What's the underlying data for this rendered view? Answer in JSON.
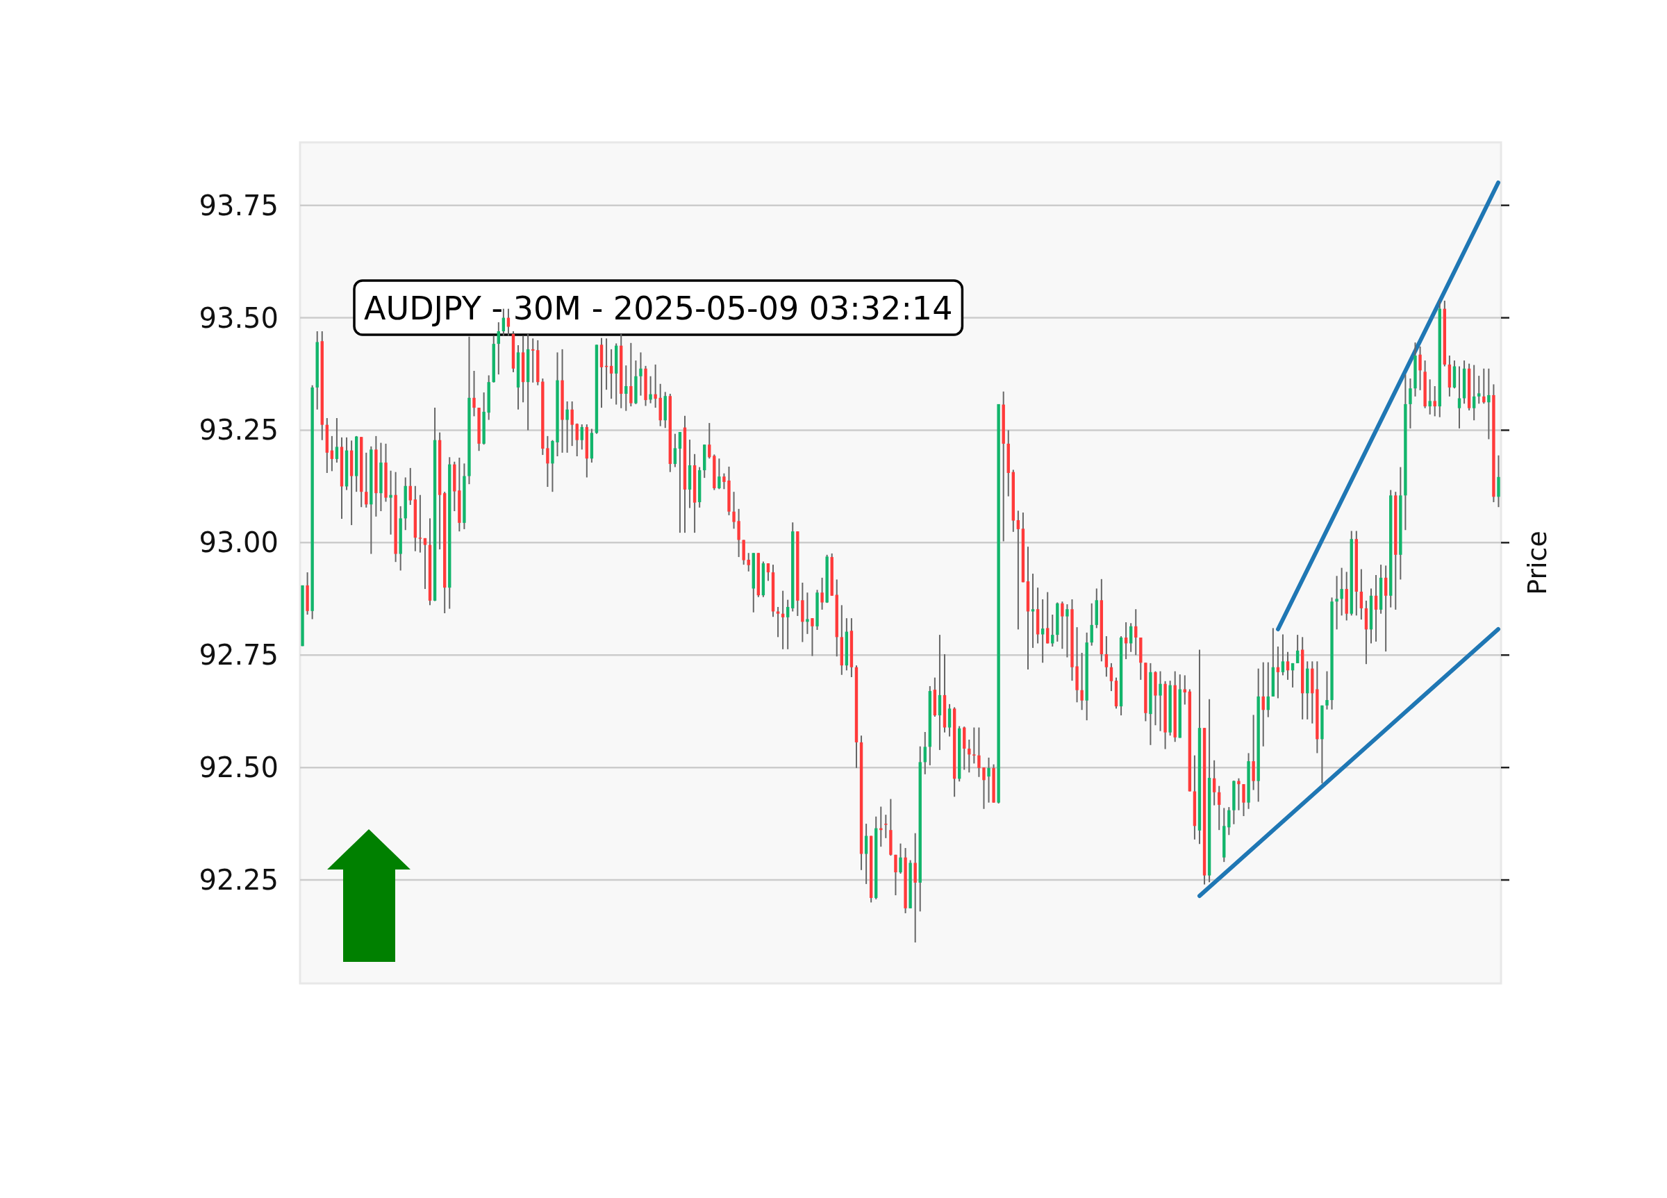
{
  "chart_data": {
    "type": "candlestick",
    "title": "AUDJPY - 30M - 2025-05-09 03:32:14",
    "ylabel": "Price",
    "colors": [
      "#12b56b",
      "#ff3a3a",
      "#12b56b",
      "#12b56b",
      "#ff3a3a",
      "#ff3a3a",
      "#ff3a3a",
      "#12b56b",
      "#ff3a3a",
      "#12b56b",
      "#ff3a3a",
      "#12b56b",
      "#ff3a3a",
      "#ff3a3a",
      "#12b56b",
      "#ff3a3a",
      "#12b56b",
      "#ff3a3a",
      "#12b56b",
      "#ff3a3a",
      "#12b56b",
      "#12b56b",
      "#ff3a3a",
      "#ff3a3a",
      "#ff3a3a",
      "#ff3a3a",
      "#ff3a3a",
      "#12b56b",
      "#ff3a3a",
      "#ff3a3a",
      "#12b56b",
      "#ff3a3a",
      "#ff3a3a",
      "#12b56b",
      "#12b56b",
      "#ff3a3a",
      "#ff3a3a",
      "#12b56b",
      "#12b56b",
      "#12b56b",
      "#12b56b",
      "#12b56b",
      "#ff3a3a",
      "#ff3a3a",
      "#12b56b",
      "#ff3a3a",
      "#12b56b",
      "#ff3a3a",
      "#ff3a3a",
      "#ff3a3a",
      "#ff3a3a",
      "#12b56b",
      "#12b56b",
      "#ff3a3a",
      "#12b56b",
      "#ff3a3a",
      "#ff3a3a",
      "#12b56b",
      "#ff3a3a",
      "#12b56b",
      "#12b56b",
      "#ff3a3a",
      "#ff3a3a",
      "#ff3a3a",
      "#12b56b",
      "#ff3a3a",
      "#12b56b",
      "#ff3a3a",
      "#12b56b",
      "#12b56b",
      "#ff3a3a",
      "#12b56b",
      "#ff3a3a",
      "#ff3a3a",
      "#12b56b",
      "#ff3a3a",
      "#12b56b",
      "#12b56b",
      "#ff3a3a",
      "#12b56b",
      "#ff3a3a",
      "#12b56b",
      "#12b56b",
      "#ff3a3a",
      "#ff3a3a",
      "#12b56b",
      "#ff3a3a",
      "#ff3a3a",
      "#ff3a3a",
      "#ff3a3a",
      "#ff3a3a",
      "#ff3a3a",
      "#12b56b",
      "#ff3a3a",
      "#12b56b",
      "#ff3a3a",
      "#ff3a3a",
      "#ff3a3a",
      "#ff3a3a",
      "#12b56b",
      "#12b56b",
      "#ff3a3a",
      "#ff3a3a",
      "#12b56b",
      "#ff3a3a",
      "#12b56b",
      "#ff3a3a",
      "#12b56b",
      "#ff3a3a",
      "#ff3a3a",
      "#ff3a3a",
      "#12b56b",
      "#ff3a3a",
      "#ff3a3a",
      "#ff3a3a",
      "#12b56b",
      "#ff3a3a",
      "#12b56b",
      "#ff3a3a",
      "#ff3a3a",
      "#ff3a3a",
      "#ff3a3a",
      "#12b56b",
      "#ff3a3a",
      "#12b56b",
      "#ff3a3a",
      "#12b56b",
      "#12b56b",
      "#12b56b",
      "#ff3a3a",
      "#12b56b",
      "#ff3a3a",
      "#12b56b",
      "#ff3a3a",
      "#12b56b",
      "#ff3a3a",
      "#ff3a3a",
      "#ff3a3a",
      "#ff3a3a",
      "#ff3a3a",
      "#12b56b",
      "#ff3a3a",
      "#12b56b",
      "#ff3a3a",
      "#ff3a3a",
      "#ff3a3a",
      "#ff3a3a",
      "#ff3a3a",
      "#ff3a3a",
      "#12b56b",
      "#ff3a3a",
      "#12b56b",
      "#ff3a3a",
      "#12b56b",
      "#12b56b",
      "#ff3a3a",
      "#12b56b",
      "#ff3a3a",
      "#ff3a3a",
      "#ff3a3a",
      "#12b56b",
      "#12b56b",
      "#12b56b",
      "#ff3a3a",
      "#ff3a3a",
      "#ff3a3a",
      "#ff3a3a",
      "#12b56b",
      "#ff3a3a",
      "#12b56b",
      "#ff3a3a",
      "#ff3a3a",
      "#ff3a3a",
      "#12b56b",
      "#ff3a3a",
      "#12b56b",
      "#ff3a3a",
      "#12b56b",
      "#ff3a3a",
      "#12b56b",
      "#ff3a3a",
      "#ff3a3a",
      "#ff3a3a",
      "#12b56b",
      "#ff3a3a",
      "#12b56b",
      "#ff3a3a",
      "#ff3a3a",
      "#12b56b",
      "#12b56b",
      "#12b56b",
      "#ff3a3a",
      "#ff3a3a",
      "#12b56b",
      "#ff3a3a",
      "#12b56b",
      "#ff3a3a",
      "#12b56b",
      "#12b56b",
      "#ff3a3a",
      "#12b56b",
      "#ff3a3a",
      "#12b56b",
      "#12b56b",
      "#ff3a3a",
      "#12b56b",
      "#ff3a3a",
      "#ff3a3a",
      "#12b56b",
      "#12b56b",
      "#12b56b",
      "#12b56b",
      "#12b56b",
      "#ff3a3a",
      "#12b56b",
      "#ff3a3a",
      "#ff3a3a",
      "#ff3a3a",
      "#12b56b",
      "#ff3a3a",
      "#12b56b",
      "#ff3a3a",
      "#12b56b",
      "#ff3a3a",
      "#12b56b",
      "#12b56b",
      "#12b56b",
      "#12b56b",
      "#ff3a3a",
      "#ff3a3a",
      "#12b56b",
      "#ff3a3a",
      "#12b56b",
      "#ff3a3a",
      "#ff3a3a",
      "#12b56b",
      "#12b56b",
      "#12b56b",
      "#ff3a3a",
      "#12b56b",
      "#12b56b",
      "#ff3a3a",
      "#12b56b",
      "#ff3a3a",
      "#12b56b"
    ],
    "ylim": [
      92.02,
      93.89
    ],
    "yticks": [
      {
        "value": 92.25,
        "label": "92.25"
      },
      {
        "value": 92.5,
        "label": "92.50"
      },
      {
        "value": 92.75,
        "label": "92.75"
      },
      {
        "value": 93,
        "label": "93.00"
      },
      {
        "value": 93.25,
        "label": "93.25"
      },
      {
        "value": 93.5,
        "label": "93.50"
      },
      {
        "value": 93.75,
        "label": "93.75"
      }
    ],
    "grid": "y",
    "tick_labels": "y",
    "categories": [
      null,
      null,
      null,
      null,
      null,
      null,
      null,
      null,
      null,
      null,
      null,
      null,
      null,
      null,
      null,
      null,
      null,
      null,
      null,
      null,
      null,
      null,
      null,
      null,
      null,
      null,
      null,
      null,
      null,
      null,
      null,
      null,
      null,
      null,
      null,
      null,
      null,
      null,
      null,
      null,
      null,
      null,
      null,
      null,
      null,
      null,
      null,
      null,
      null,
      null,
      null,
      null,
      null,
      null,
      null,
      null,
      null,
      null,
      null,
      null,
      null,
      null,
      null,
      null,
      null,
      null,
      null,
      null,
      null,
      null,
      null,
      null,
      null,
      null,
      null,
      null,
      null,
      null,
      null,
      null,
      null,
      null,
      null,
      null,
      null,
      null,
      null,
      null,
      null,
      null,
      null,
      null,
      null,
      null,
      null,
      null,
      null,
      null,
      null,
      null,
      null,
      null,
      null,
      null,
      null,
      null,
      null,
      null,
      null,
      null,
      null,
      null,
      null,
      null,
      null,
      null,
      null,
      null,
      null,
      null,
      null,
      null,
      null,
      null,
      null,
      null,
      null,
      null,
      null,
      null,
      null,
      null,
      null,
      null,
      null,
      null,
      null,
      null,
      null,
      null,
      null,
      null,
      null,
      null,
      null,
      null,
      null,
      null,
      null,
      null,
      null,
      null,
      null,
      null,
      null,
      null,
      null,
      null,
      null,
      null,
      null,
      null,
      null,
      null,
      null,
      null,
      null,
      null,
      null,
      null,
      null,
      null,
      null,
      null,
      null,
      null,
      null,
      null,
      null,
      null,
      null,
      null,
      null,
      null,
      null,
      null,
      null,
      null,
      null,
      null,
      null,
      null,
      null,
      null,
      null,
      null,
      null,
      null,
      null,
      null,
      null,
      null,
      null,
      null,
      null,
      null,
      null,
      null,
      null,
      null,
      null,
      null,
      null,
      null,
      null,
      null,
      null,
      null,
      null,
      null,
      null,
      null,
      null,
      null,
      null,
      null,
      null,
      null,
      null,
      null,
      null,
      null,
      null,
      null,
      null,
      null,
      null,
      null,
      null,
      null,
      null,
      null,
      null,
      null,
      null
    ],
    "ohlc": [
      [
        92.77,
        92.905,
        92.77,
        92.905
      ],
      [
        92.905,
        92.934,
        92.84,
        92.848
      ],
      [
        92.848,
        93.35,
        92.83,
        93.345
      ],
      [
        93.345,
        93.47,
        93.296,
        93.446
      ],
      [
        93.448,
        93.47,
        93.228,
        93.262
      ],
      [
        93.262,
        93.277,
        93.155,
        93.2
      ],
      [
        93.205,
        93.237,
        93.159,
        93.186
      ],
      [
        93.186,
        93.277,
        93.178,
        93.213
      ],
      [
        93.213,
        93.234,
        93.053,
        93.125
      ],
      [
        93.125,
        93.234,
        93.117,
        93.205
      ],
      [
        93.205,
        93.227,
        93.039,
        93.148
      ],
      [
        93.148,
        93.237,
        93.113,
        93.236
      ],
      [
        93.235,
        93.235,
        93.079,
        93.113
      ],
      [
        93.113,
        93.2,
        93.078,
        93.085
      ],
      [
        93.085,
        93.214,
        92.975,
        93.207
      ],
      [
        93.207,
        93.237,
        93.058,
        93.11
      ],
      [
        93.11,
        93.222,
        93.07,
        93.178
      ],
      [
        93.178,
        93.22,
        93.091,
        93.1
      ],
      [
        93.1,
        93.16,
        93.018,
        93.106
      ],
      [
        93.106,
        93.157,
        92.957,
        92.975
      ],
      [
        92.975,
        93.081,
        92.938,
        93.054
      ],
      [
        93.054,
        93.145,
        93.028,
        93.126
      ],
      [
        93.126,
        93.166,
        93.084,
        93.094
      ],
      [
        93.096,
        93.126,
        92.981,
        93.011
      ],
      [
        93.011,
        93.106,
        92.978,
        93.009
      ],
      [
        93.01,
        93.01,
        92.897,
        92.995
      ],
      [
        92.995,
        93.054,
        92.861,
        92.871
      ],
      [
        92.871,
        93.3,
        92.87,
        93.228
      ],
      [
        93.228,
        93.245,
        92.985,
        93.106
      ],
      [
        93.11,
        93.113,
        92.843,
        92.9
      ],
      [
        92.9,
        93.19,
        92.853,
        93.174
      ],
      [
        93.174,
        93.18,
        93.07,
        93.114
      ],
      [
        93.116,
        93.189,
        93.025,
        93.044
      ],
      [
        93.044,
        93.176,
        93.03,
        93.148
      ],
      [
        93.148,
        93.458,
        93.13,
        93.322
      ],
      [
        93.322,
        93.382,
        93.281,
        93.3
      ],
      [
        93.3,
        93.3,
        93.204,
        93.22
      ],
      [
        93.22,
        93.334,
        93.218,
        93.291
      ],
      [
        93.289,
        93.372,
        93.273,
        93.357
      ],
      [
        93.357,
        93.46,
        93.356,
        93.442
      ],
      [
        93.442,
        93.49,
        93.374,
        93.47
      ],
      [
        93.47,
        93.52,
        93.46,
        93.5
      ],
      [
        93.5,
        93.52,
        93.46,
        93.48
      ],
      [
        93.464,
        93.47,
        93.379,
        93.387
      ],
      [
        93.345,
        93.439,
        93.296,
        93.423
      ],
      [
        93.423,
        93.46,
        93.312,
        93.357
      ],
      [
        93.357,
        93.464,
        93.25,
        93.43
      ],
      [
        93.43,
        93.454,
        93.356,
        93.427
      ],
      [
        93.428,
        93.45,
        93.35,
        93.357
      ],
      [
        93.358,
        93.365,
        93.195,
        93.209
      ],
      [
        93.21,
        93.237,
        93.124,
        93.176
      ],
      [
        93.176,
        93.228,
        93.113,
        93.226
      ],
      [
        93.223,
        93.423,
        93.192,
        93.361
      ],
      [
        93.361,
        93.43,
        93.2,
        93.273
      ],
      [
        93.273,
        93.314,
        93.2,
        93.296
      ],
      [
        93.296,
        93.314,
        93.215,
        93.262
      ],
      [
        93.264,
        93.265,
        93.192,
        93.228
      ],
      [
        93.228,
        93.263,
        93.207,
        93.257
      ],
      [
        93.257,
        93.263,
        93.145,
        93.187
      ],
      [
        93.187,
        93.253,
        93.178,
        93.244
      ],
      [
        93.244,
        93.44,
        93.242,
        93.44
      ],
      [
        93.44,
        93.455,
        93.3,
        93.39
      ],
      [
        93.393,
        93.454,
        93.34,
        93.392
      ],
      [
        93.393,
        93.43,
        93.32,
        93.376
      ],
      [
        93.376,
        93.443,
        93.307,
        93.438
      ],
      [
        93.438,
        93.464,
        93.299,
        93.331
      ],
      [
        93.331,
        93.394,
        93.293,
        93.348
      ],
      [
        93.348,
        93.444,
        93.303,
        93.31
      ],
      [
        93.31,
        93.405,
        93.308,
        93.37
      ],
      [
        93.37,
        93.423,
        93.327,
        93.387
      ],
      [
        93.387,
        93.393,
        93.304,
        93.317
      ],
      [
        93.318,
        93.37,
        93.31,
        93.33
      ],
      [
        93.33,
        93.396,
        93.3,
        93.32
      ],
      [
        93.322,
        93.353,
        93.259,
        93.272
      ],
      [
        93.272,
        93.335,
        93.255,
        93.326
      ],
      [
        93.326,
        93.331,
        93.157,
        93.175
      ],
      [
        93.175,
        93.242,
        93.168,
        93.21
      ],
      [
        93.209,
        93.246,
        93.022,
        93.246
      ],
      [
        93.256,
        93.282,
        93.022,
        93.118
      ],
      [
        93.118,
        93.229,
        93.077,
        93.172
      ],
      [
        93.172,
        93.197,
        93.022,
        93.089
      ],
      [
        93.09,
        93.168,
        93.078,
        93.161
      ],
      [
        93.161,
        93.218,
        93.144,
        93.218
      ],
      [
        93.218,
        93.266,
        93.187,
        93.19
      ],
      [
        93.193,
        93.196,
        93.117,
        93.121
      ],
      [
        93.121,
        93.187,
        93.119,
        93.147
      ],
      [
        93.147,
        93.154,
        93.119,
        93.135
      ],
      [
        93.138,
        93.169,
        93.061,
        93.069
      ],
      [
        93.069,
        93.113,
        93.031,
        93.046
      ],
      [
        93.048,
        93.075,
        92.968,
        93.006
      ],
      [
        93.006,
        93.006,
        92.951,
        92.961
      ],
      [
        92.962,
        92.977,
        92.936,
        92.95
      ],
      [
        92.898,
        92.977,
        92.845,
        92.977
      ],
      [
        92.977,
        92.977,
        92.879,
        92.883
      ],
      [
        92.883,
        92.958,
        92.879,
        92.954
      ],
      [
        92.954,
        92.954,
        92.915,
        92.934
      ],
      [
        92.934,
        92.951,
        92.835,
        92.847
      ],
      [
        92.847,
        92.857,
        92.79,
        92.842
      ],
      [
        92.842,
        92.893,
        92.763,
        92.834
      ],
      [
        92.834,
        92.873,
        92.763,
        92.857
      ],
      [
        92.854,
        93.045,
        92.847,
        93.025
      ],
      [
        93.025,
        93.025,
        92.837,
        92.871
      ],
      [
        92.872,
        92.911,
        92.779,
        92.824
      ],
      [
        92.824,
        92.889,
        92.797,
        92.83
      ],
      [
        92.832,
        92.832,
        92.748,
        92.814
      ],
      [
        92.814,
        92.895,
        92.806,
        92.889
      ],
      [
        92.889,
        92.922,
        92.851,
        92.867
      ],
      [
        92.867,
        92.973,
        92.866,
        92.969
      ],
      [
        92.968,
        92.976,
        92.882,
        92.882
      ],
      [
        92.884,
        92.918,
        92.747,
        92.79
      ],
      [
        92.79,
        92.861,
        92.706,
        92.727
      ],
      [
        92.727,
        92.832,
        92.716,
        92.802
      ],
      [
        92.804,
        92.832,
        92.701,
        92.723
      ],
      [
        92.723,
        92.727,
        92.499,
        92.556
      ],
      [
        92.556,
        92.571,
        92.272,
        92.308
      ],
      [
        92.308,
        92.375,
        92.241,
        92.348
      ],
      [
        92.348,
        92.348,
        92.2,
        92.21
      ],
      [
        92.21,
        92.391,
        92.207,
        92.365
      ],
      [
        92.365,
        92.413,
        92.324,
        92.361
      ],
      [
        92.375,
        92.395,
        92.343,
        92.373
      ],
      [
        92.361,
        92.43,
        92.304,
        92.306
      ],
      [
        92.306,
        92.306,
        92.216,
        92.267
      ],
      [
        92.267,
        92.331,
        92.264,
        92.3
      ],
      [
        92.3,
        92.321,
        92.176,
        92.187
      ],
      [
        92.187,
        92.294,
        92.187,
        92.288
      ],
      [
        92.288,
        92.354,
        92.111,
        92.244
      ],
      [
        92.244,
        92.547,
        92.18,
        92.512
      ],
      [
        92.512,
        92.579,
        92.485,
        92.546
      ],
      [
        92.546,
        92.681,
        92.505,
        92.67
      ],
      [
        92.673,
        92.7,
        92.613,
        92.616
      ],
      [
        92.616,
        92.795,
        92.539,
        92.661
      ],
      [
        92.661,
        92.752,
        92.578,
        92.589
      ],
      [
        92.589,
        92.641,
        92.569,
        92.631
      ],
      [
        92.631,
        92.634,
        92.435,
        92.475
      ],
      [
        92.475,
        92.592,
        92.469,
        92.587
      ],
      [
        92.589,
        92.591,
        92.495,
        92.542
      ],
      [
        92.542,
        92.562,
        92.489,
        92.529
      ],
      [
        92.529,
        92.589,
        92.509,
        92.527
      ],
      [
        92.527,
        92.589,
        92.479,
        92.499
      ],
      [
        92.5,
        92.5,
        92.408,
        92.472
      ],
      [
        92.48,
        92.522,
        92.422,
        92.499
      ],
      [
        92.499,
        92.507,
        92.422,
        92.422
      ],
      [
        92.422,
        93.308,
        92.42,
        93.308
      ],
      [
        93.307,
        93.336,
        93.003,
        93.22
      ],
      [
        93.22,
        93.25,
        93.103,
        93.155
      ],
      [
        93.157,
        93.162,
        93.024,
        93.049
      ],
      [
        93.05,
        93.071,
        92.807,
        93.03
      ],
      [
        93.031,
        93.067,
        92.912,
        92.912
      ],
      [
        92.914,
        92.991,
        92.718,
        92.847
      ],
      [
        92.847,
        92.931,
        92.766,
        92.852
      ],
      [
        92.852,
        92.9,
        92.776,
        92.796
      ],
      [
        92.796,
        92.874,
        92.733,
        92.809
      ],
      [
        92.81,
        92.89,
        92.776,
        92.776
      ],
      [
        92.776,
        92.84,
        92.769,
        92.795
      ],
      [
        92.795,
        92.867,
        92.78,
        92.865
      ],
      [
        92.865,
        92.869,
        92.764,
        92.836
      ],
      [
        92.836,
        92.863,
        92.745,
        92.852
      ],
      [
        92.852,
        92.874,
        92.693,
        92.723
      ],
      [
        92.725,
        92.812,
        92.645,
        92.672
      ],
      [
        92.672,
        92.755,
        92.628,
        92.649
      ],
      [
        92.649,
        92.8,
        92.605,
        92.778
      ],
      [
        92.778,
        92.865,
        92.771,
        92.817
      ],
      [
        92.817,
        92.898,
        92.81,
        92.872
      ],
      [
        92.872,
        92.919,
        92.736,
        92.752
      ],
      [
        92.752,
        92.792,
        92.702,
        92.723
      ],
      [
        92.723,
        92.732,
        92.67,
        92.692
      ],
      [
        92.693,
        92.7,
        92.631,
        92.636
      ],
      [
        92.636,
        92.792,
        92.616,
        92.789
      ],
      [
        92.789,
        92.823,
        92.741,
        92.776
      ],
      [
        92.776,
        92.821,
        92.757,
        92.814
      ],
      [
        92.814,
        92.852,
        92.75,
        92.789
      ],
      [
        92.789,
        92.789,
        92.695,
        92.733
      ],
      [
        92.733,
        92.733,
        92.603,
        92.621
      ],
      [
        92.619,
        92.732,
        92.55,
        92.712
      ],
      [
        92.712,
        92.714,
        92.594,
        92.66
      ],
      [
        92.66,
        92.714,
        92.581,
        92.686
      ],
      [
        92.686,
        92.692,
        92.541,
        92.578
      ],
      [
        92.578,
        92.693,
        92.571,
        92.683
      ],
      [
        92.683,
        92.714,
        92.557,
        92.567
      ],
      [
        92.566,
        92.707,
        92.566,
        92.674
      ],
      [
        92.674,
        92.705,
        92.64,
        92.667
      ],
      [
        92.669,
        92.674,
        92.447,
        92.447
      ],
      [
        92.447,
        92.527,
        92.34,
        92.37
      ],
      [
        92.36,
        92.762,
        92.33,
        92.588
      ],
      [
        92.588,
        92.588,
        92.24,
        92.26
      ],
      [
        92.26,
        92.652,
        92.245,
        92.477
      ],
      [
        92.476,
        92.516,
        92.416,
        92.445
      ],
      [
        92.445,
        92.459,
        92.361,
        92.417
      ],
      [
        92.3,
        92.41,
        92.29,
        92.37
      ],
      [
        92.367,
        92.412,
        92.35,
        92.405
      ],
      [
        92.405,
        92.471,
        92.374,
        92.47
      ],
      [
        92.47,
        92.476,
        92.405,
        92.463
      ],
      [
        92.463,
        92.463,
        92.392,
        92.422
      ],
      [
        92.422,
        92.532,
        92.408,
        92.514
      ],
      [
        92.514,
        92.617,
        92.45,
        92.47
      ],
      [
        92.47,
        92.72,
        92.424,
        92.658
      ],
      [
        92.658,
        92.734,
        92.547,
        92.628
      ],
      [
        92.628,
        92.734,
        92.612,
        92.658
      ],
      [
        92.658,
        92.81,
        92.658,
        92.723
      ],
      [
        92.723,
        92.769,
        92.654,
        92.712
      ],
      [
        92.712,
        92.796,
        92.705,
        92.736
      ],
      [
        92.736,
        92.757,
        92.695,
        92.716
      ],
      [
        92.716,
        92.732,
        92.678,
        92.732
      ],
      [
        92.732,
        92.795,
        92.732,
        92.76
      ],
      [
        92.762,
        92.79,
        92.607,
        92.665
      ],
      [
        92.665,
        92.736,
        92.607,
        92.72
      ],
      [
        92.72,
        92.736,
        92.598,
        92.665
      ],
      [
        92.674,
        92.736,
        92.532,
        92.563
      ],
      [
        92.563,
        92.638,
        92.465,
        92.638
      ],
      [
        92.638,
        92.714,
        92.629,
        92.65
      ],
      [
        92.65,
        92.878,
        92.629,
        92.869
      ],
      [
        92.869,
        92.926,
        92.807,
        92.875
      ],
      [
        92.875,
        92.944,
        92.838,
        92.897
      ],
      [
        92.897,
        92.935,
        92.827,
        92.842
      ],
      [
        92.842,
        93.026,
        92.838,
        93.008
      ],
      [
        93.008,
        93.026,
        92.838,
        92.891
      ],
      [
        92.891,
        92.941,
        92.829,
        92.854
      ],
      [
        92.854,
        92.871,
        92.73,
        92.807
      ],
      [
        92.807,
        92.898,
        92.776,
        92.882
      ],
      [
        92.882,
        92.928,
        92.78,
        92.851
      ],
      [
        92.851,
        92.951,
        92.842,
        92.922
      ],
      [
        92.922,
        92.949,
        92.758,
        92.882
      ],
      [
        92.882,
        93.117,
        92.856,
        93.105
      ],
      [
        93.105,
        93.113,
        92.851,
        92.973
      ],
      [
        92.973,
        93.168,
        92.918,
        93.105
      ],
      [
        93.105,
        93.374,
        93.028,
        93.308
      ],
      [
        93.308,
        93.365,
        93.254,
        93.343
      ],
      [
        93.343,
        93.445,
        93.325,
        93.416
      ],
      [
        93.418,
        93.436,
        93.339,
        93.383
      ],
      [
        93.38,
        93.405,
        93.299,
        93.303
      ],
      [
        93.303,
        93.363,
        93.285,
        93.315
      ],
      [
        93.315,
        93.348,
        93.281,
        93.303
      ],
      [
        93.303,
        93.538,
        93.279,
        93.52
      ],
      [
        93.52,
        93.538,
        93.392,
        93.396
      ],
      [
        93.396,
        93.416,
        93.325,
        93.345
      ],
      [
        93.345,
        93.405,
        93.343,
        93.392
      ],
      [
        93.299,
        93.392,
        93.254,
        93.321
      ],
      [
        93.321,
        93.405,
        93.309,
        93.387
      ],
      [
        93.387,
        93.398,
        93.294,
        93.299
      ],
      [
        93.299,
        93.395,
        93.272,
        93.325
      ],
      [
        93.325,
        93.371,
        93.309,
        93.332
      ],
      [
        93.325,
        93.387,
        93.309,
        93.312
      ],
      [
        93.312,
        93.387,
        93.23,
        93.328
      ],
      [
        93.328,
        93.352,
        93.09,
        93.102
      ],
      [
        93.102,
        93.194,
        93.079,
        93.146
      ]
    ]
  }
}
